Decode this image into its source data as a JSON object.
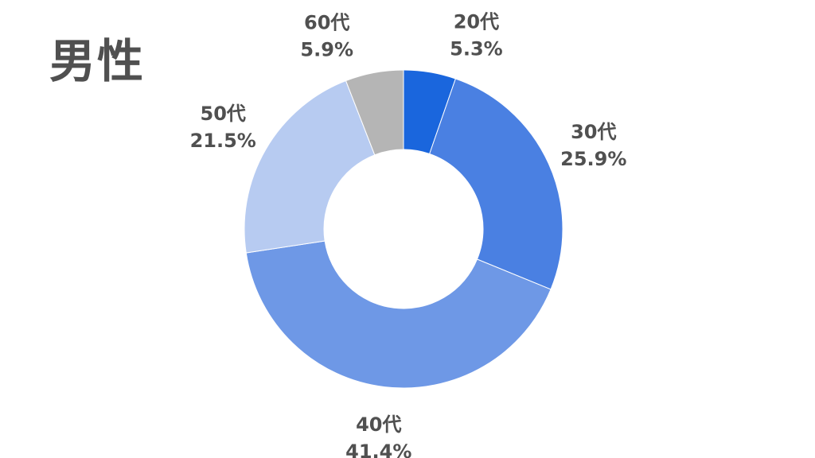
{
  "title": "男性",
  "chart_data": {
    "type": "pie",
    "title": "男性",
    "donut": true,
    "start": "top, clockwise",
    "slices": [
      {
        "label": "20代",
        "value": 5.3,
        "display": "5.3%",
        "color": "#1a66dd"
      },
      {
        "label": "30代",
        "value": 25.9,
        "display": "25.9%",
        "color": "#4a80e2"
      },
      {
        "label": "40代",
        "value": 41.4,
        "display": "41.4%",
        "color": "#6e98e6"
      },
      {
        "label": "50代",
        "value": 21.5,
        "display": "21.5%",
        "color": "#b7cbf1"
      },
      {
        "label": "60代",
        "value": 5.9,
        "display": "5.9%",
        "color": "#b5b5b5"
      }
    ]
  }
}
